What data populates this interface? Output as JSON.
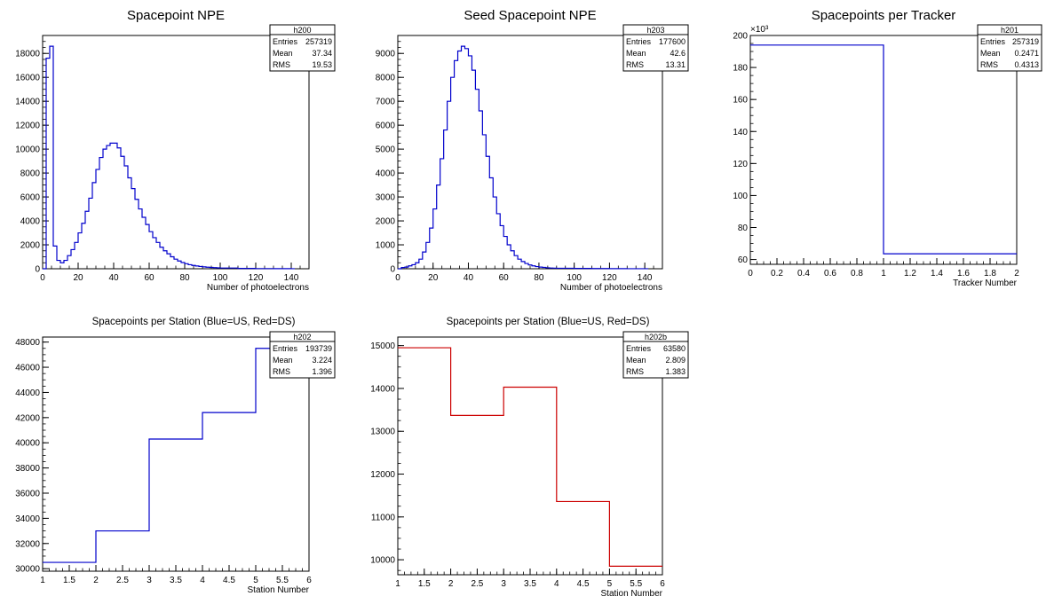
{
  "chart_data": [
    {
      "type": "histogram",
      "title": "Spacepoint NPE",
      "xlabel": "Number of photoelectrons",
      "ylabel": "",
      "xlim": [
        0,
        150
      ],
      "ylim": [
        0,
        19500
      ],
      "xticks": [
        0,
        20,
        40,
        60,
        80,
        100,
        120,
        140
      ],
      "yticks": [
        0,
        2000,
        4000,
        6000,
        8000,
        10000,
        12000,
        14000,
        16000,
        18000
      ],
      "line_color": "#0000cc",
      "bin_width": 2,
      "x": [
        0,
        2,
        4,
        6,
        8,
        10,
        12,
        14,
        16,
        18,
        20,
        22,
        24,
        26,
        28,
        30,
        32,
        34,
        36,
        38,
        40,
        42,
        44,
        46,
        48,
        50,
        52,
        54,
        56,
        58,
        60,
        62,
        64,
        66,
        68,
        70,
        72,
        74,
        76,
        78,
        80,
        82,
        84,
        86,
        88,
        90,
        92,
        94,
        96,
        98,
        100,
        110,
        120,
        130,
        140
      ],
      "values": [
        0,
        17600,
        18600,
        1900,
        700,
        500,
        700,
        1100,
        1600,
        2200,
        3000,
        3800,
        4800,
        5900,
        7200,
        8300,
        9300,
        10000,
        10300,
        10500,
        10500,
        10100,
        9400,
        8600,
        7600,
        6700,
        5800,
        5000,
        4300,
        3700,
        3100,
        2600,
        2200,
        1800,
        1500,
        1250,
        1000,
        800,
        650,
        520,
        420,
        340,
        280,
        230,
        190,
        160,
        130,
        110,
        90,
        75,
        60,
        30,
        15,
        8,
        4
      ],
      "stats": {
        "name": "h200",
        "rows": [
          {
            "label": "Entries",
            "value": "257319"
          },
          {
            "label": "Mean",
            "value": "37.34"
          },
          {
            "label": "RMS",
            "value": "19.53"
          }
        ]
      }
    },
    {
      "type": "histogram",
      "title": "Seed Spacepoint NPE",
      "xlabel": "Number of photoelectrons",
      "ylabel": "",
      "xlim": [
        0,
        150
      ],
      "ylim": [
        0,
        9750
      ],
      "xticks": [
        0,
        20,
        40,
        60,
        80,
        100,
        120,
        140
      ],
      "yticks": [
        0,
        1000,
        2000,
        3000,
        4000,
        5000,
        6000,
        7000,
        8000,
        9000
      ],
      "line_color": "#0000cc",
      "bin_width": 2,
      "x": [
        0,
        2,
        4,
        6,
        8,
        10,
        12,
        14,
        16,
        18,
        20,
        22,
        24,
        26,
        28,
        30,
        32,
        34,
        36,
        38,
        40,
        42,
        44,
        46,
        48,
        50,
        52,
        54,
        56,
        58,
        60,
        62,
        64,
        66,
        68,
        70,
        72,
        74,
        76,
        78,
        80,
        82,
        84,
        86,
        88,
        90,
        100,
        110,
        120,
        130,
        140
      ],
      "values": [
        0,
        50,
        70,
        120,
        170,
        250,
        400,
        700,
        1100,
        1700,
        2500,
        3500,
        4600,
        5800,
        7000,
        8000,
        8700,
        9100,
        9300,
        9200,
        8900,
        8300,
        7500,
        6600,
        5600,
        4700,
        3800,
        3000,
        2300,
        1800,
        1350,
        1000,
        750,
        550,
        400,
        300,
        220,
        160,
        120,
        90,
        70,
        55,
        40,
        30,
        25,
        20,
        15,
        10,
        6,
        3,
        2
      ],
      "stats": {
        "name": "h203",
        "rows": [
          {
            "label": "Entries",
            "value": "177600"
          },
          {
            "label": "Mean",
            "value": "42.6"
          },
          {
            "label": "RMS",
            "value": "13.31"
          }
        ]
      }
    },
    {
      "type": "histogram",
      "title": "Spacepoints per Tracker",
      "xlabel": "Tracker Number",
      "ylabel": "",
      "xlim": [
        0,
        2
      ],
      "ylim": [
        57,
        200
      ],
      "xticks": [
        0,
        0.2,
        0.4,
        0.6,
        0.8,
        1,
        1.2,
        1.4,
        1.6,
        1.8,
        2
      ],
      "yticks": [
        60,
        80,
        100,
        120,
        140,
        160,
        180,
        200
      ],
      "y_scale_label": "×10³",
      "line_color": "#0000cc",
      "bin_edges": [
        0,
        1,
        2
      ],
      "values": [
        194,
        63.6
      ],
      "stats": {
        "name": "h201",
        "rows": [
          {
            "label": "Entries",
            "value": "257319"
          },
          {
            "label": "Mean",
            "value": "0.2471"
          },
          {
            "label": "RMS",
            "value": "0.4313"
          }
        ]
      }
    },
    {
      "type": "histogram",
      "title": "Spacepoints per Station (Blue=US, Red=DS)",
      "xlabel": "Station Number",
      "ylabel": "",
      "xlim": [
        1,
        6
      ],
      "ylim": [
        29800,
        48400
      ],
      "xticks": [
        1,
        1.5,
        2,
        2.5,
        3,
        3.5,
        4,
        4.5,
        5,
        5.5,
        6
      ],
      "yticks": [
        30000,
        32000,
        34000,
        36000,
        38000,
        40000,
        42000,
        44000,
        46000,
        48000
      ],
      "line_color": "#0000cc",
      "bin_edges": [
        1,
        2,
        3,
        4,
        5,
        6
      ],
      "values": [
        30500,
        33000,
        40300,
        42400,
        47500
      ],
      "stats": {
        "name": "h202",
        "rows": [
          {
            "label": "Entries",
            "value": "193739"
          },
          {
            "label": "Mean",
            "value": "3.224"
          },
          {
            "label": "RMS",
            "value": "1.396"
          }
        ]
      }
    },
    {
      "type": "histogram",
      "title": "Spacepoints per Station (Blue=US, Red=DS)",
      "xlabel": "Station Number",
      "ylabel": "",
      "xlim": [
        1,
        6
      ],
      "ylim": [
        9650,
        15200
      ],
      "xticks": [
        1,
        1.5,
        2,
        2.5,
        3,
        3.5,
        4,
        4.5,
        5,
        5.5,
        6
      ],
      "yticks": [
        10000,
        11000,
        12000,
        13000,
        14000,
        15000
      ],
      "line_color": "#cc0000",
      "bin_edges": [
        1,
        2,
        3,
        4,
        5,
        6
      ],
      "values": [
        14950,
        13370,
        14030,
        11360,
        9850
      ],
      "stats": {
        "name": "h202b",
        "rows": [
          {
            "label": "Entries",
            "value": "63580"
          },
          {
            "label": "Mean",
            "value": "2.809"
          },
          {
            "label": "RMS",
            "value": "1.383"
          }
        ]
      }
    }
  ]
}
